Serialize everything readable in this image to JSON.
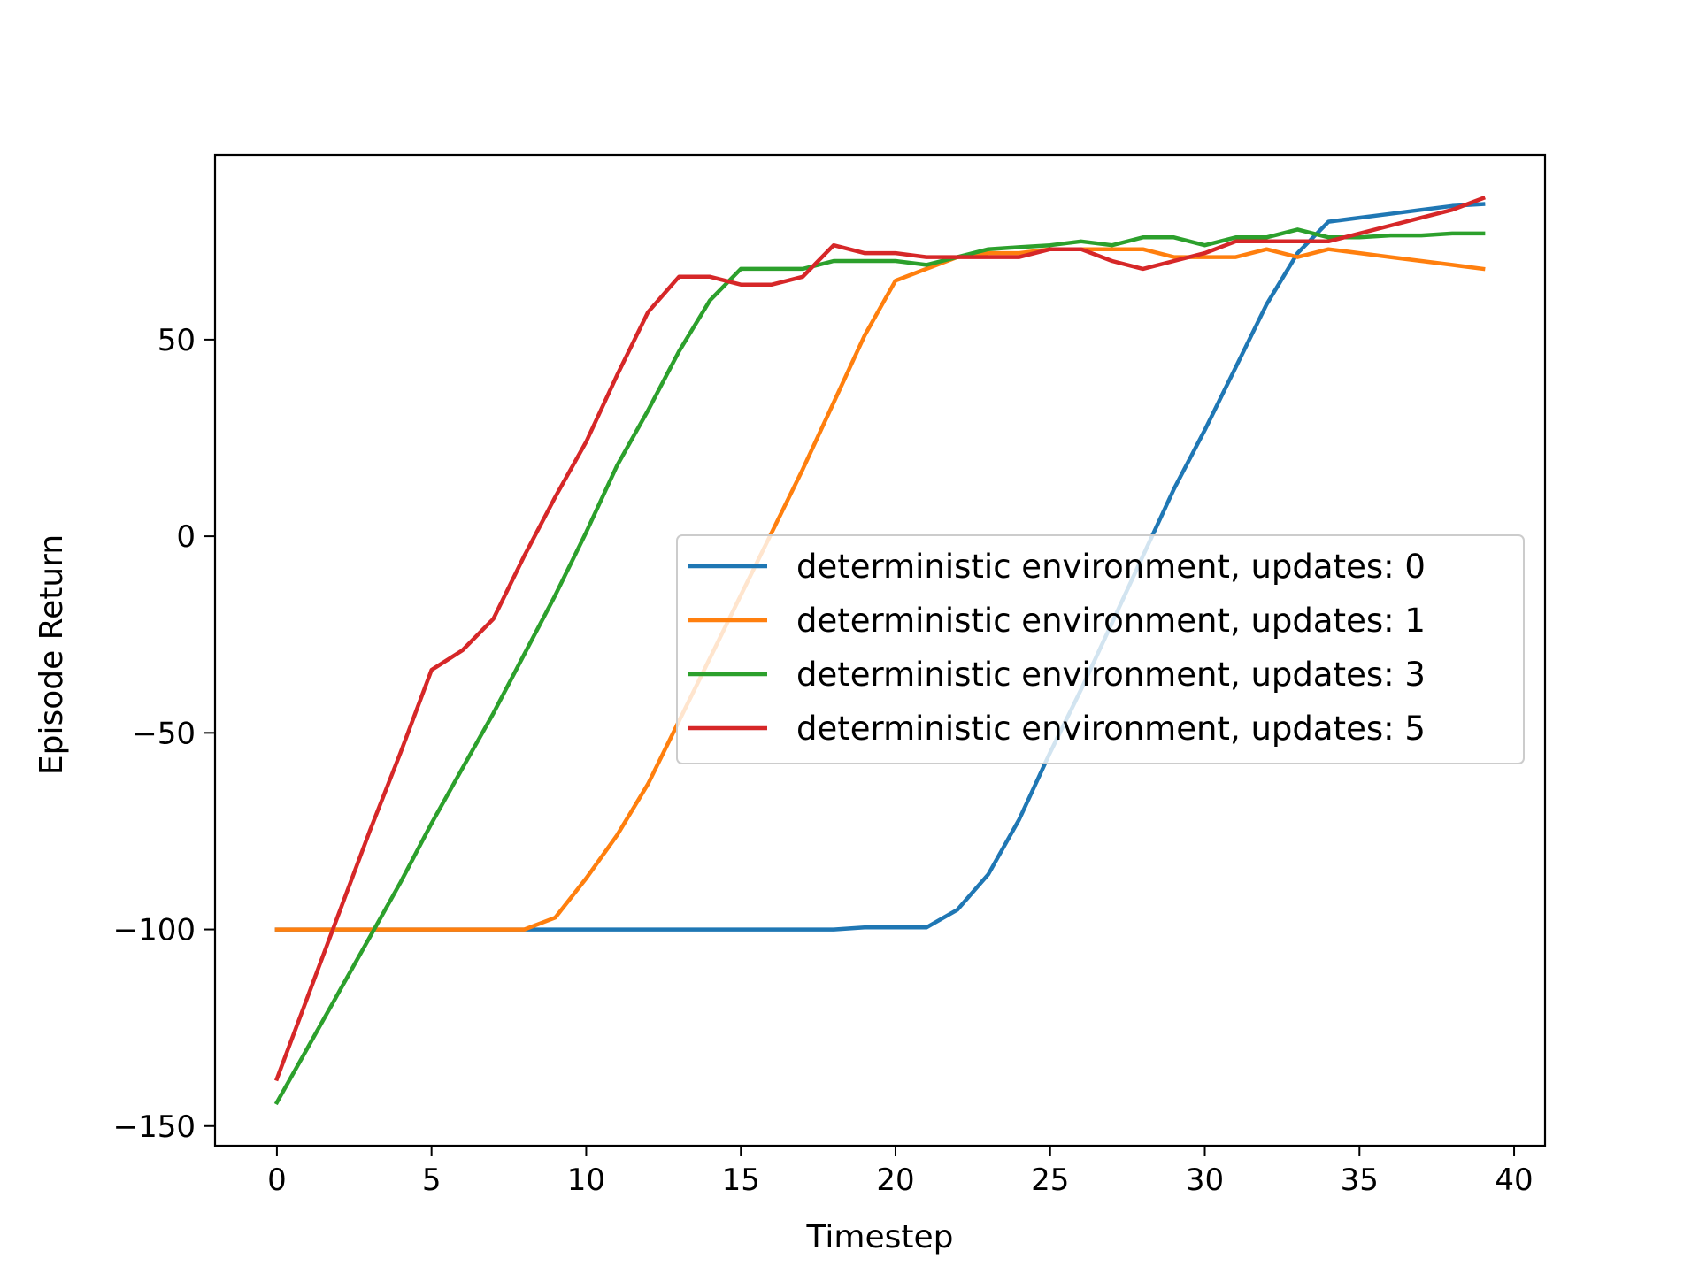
{
  "chart_data": {
    "type": "line",
    "xlabel": "Timestep",
    "ylabel": "Episode Return",
    "xlim": [
      -2,
      41
    ],
    "ylim": [
      -155,
      97
    ],
    "xticks": [
      0,
      5,
      10,
      15,
      20,
      25,
      30,
      35,
      40
    ],
    "yticks": [
      -150,
      -100,
      -50,
      0,
      50
    ],
    "ytick_labels": [
      "−150",
      "−100",
      "−50",
      "0",
      "50"
    ],
    "grid": false,
    "legend_position": "center-right",
    "x": [
      0,
      1,
      2,
      3,
      4,
      5,
      6,
      7,
      8,
      9,
      10,
      11,
      12,
      13,
      14,
      15,
      16,
      17,
      18,
      19,
      20,
      21,
      22,
      23,
      24,
      25,
      26,
      27,
      28,
      29,
      30,
      31,
      32,
      33,
      34,
      35,
      36,
      37,
      38,
      39
    ],
    "series": [
      {
        "name": "deterministic environment, updates: 0",
        "color": "#1f77b4",
        "values": [
          -100,
          -100,
          -100,
          -100,
          -100,
          -100,
          -100,
          -100,
          -100,
          -100,
          -100,
          -100,
          -100,
          -100,
          -100,
          -100,
          -100,
          -100,
          -100,
          -99.5,
          -99.5,
          -99.5,
          -95,
          -86,
          -72,
          -55,
          -39,
          -22,
          -5,
          12,
          27,
          43,
          59,
          72,
          80,
          81,
          82,
          83,
          84,
          84.5
        ]
      },
      {
        "name": "deterministic environment, updates: 1",
        "color": "#ff7f0e",
        "values": [
          -100,
          -100,
          -100,
          -100,
          -100,
          -100,
          -100,
          -100,
          -100,
          -97,
          -87,
          -76,
          -63,
          -47,
          -31,
          -15,
          1,
          17,
          34,
          51,
          65,
          68,
          71,
          72,
          72,
          73,
          73,
          73,
          73,
          71,
          71,
          71,
          73,
          71,
          73,
          72,
          71,
          70,
          69,
          68
        ]
      },
      {
        "name": "deterministic environment, updates: 3",
        "color": "#2ca02c",
        "values": [
          -144,
          -130,
          -116,
          -102,
          -88,
          -73,
          -59,
          -45,
          -30,
          -15,
          1,
          18,
          32,
          47,
          60,
          68,
          68,
          68,
          70,
          70,
          70,
          69,
          71,
          73,
          73.5,
          74,
          75,
          74,
          76,
          76,
          74,
          76,
          76,
          78,
          76,
          76,
          76.5,
          76.5,
          77,
          77
        ]
      },
      {
        "name": "deterministic environment, updates: 5",
        "color": "#d62728",
        "values": [
          -138,
          -117,
          -96,
          -75,
          -55,
          -34,
          -29,
          -21,
          -5,
          10,
          24,
          41,
          57,
          66,
          66,
          64,
          64,
          66,
          74,
          72,
          72,
          71,
          71,
          71,
          71,
          73,
          73,
          70,
          68,
          70,
          72,
          75,
          75,
          75,
          75,
          77,
          79,
          81,
          83,
          86
        ]
      }
    ]
  }
}
